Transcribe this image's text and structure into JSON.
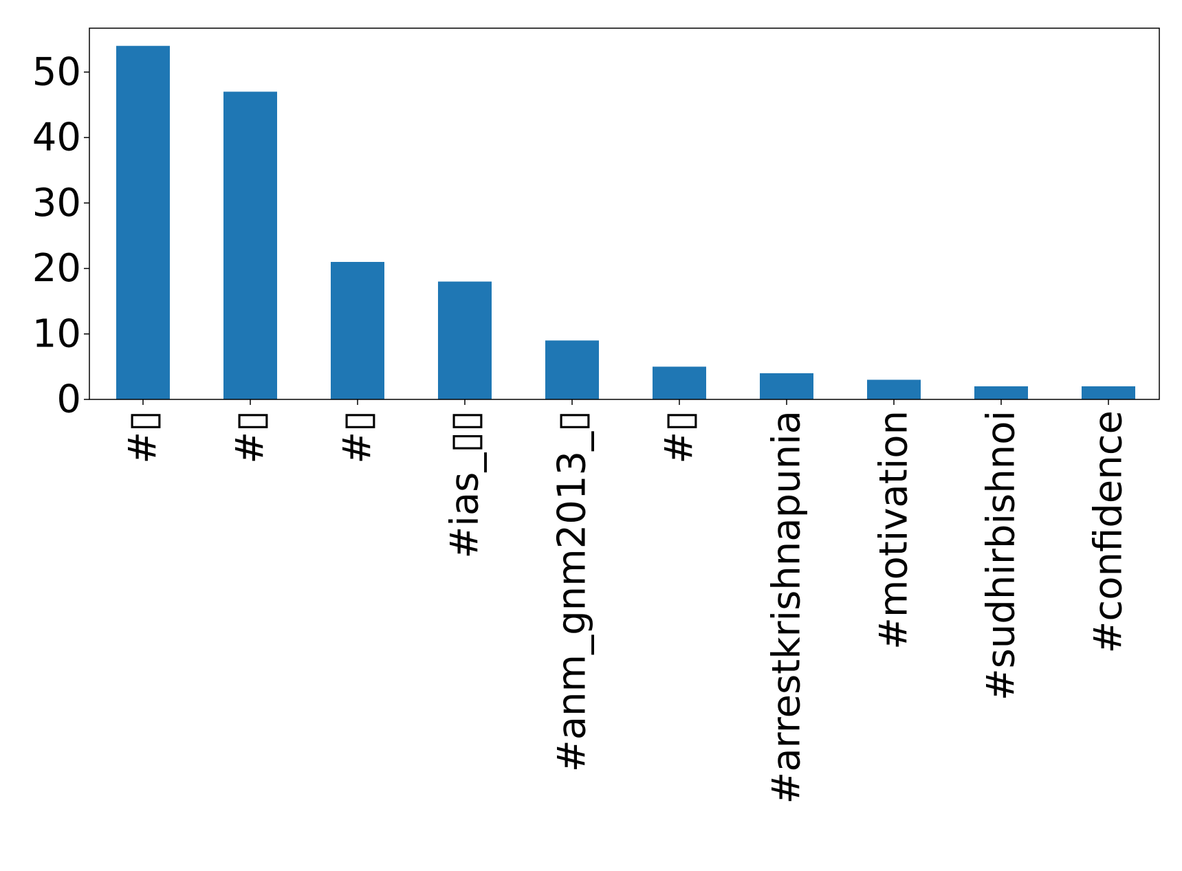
{
  "chart_data": {
    "type": "bar",
    "categories": [
      "#▯",
      "#▯",
      "#▯",
      "#ias_▯▯",
      "#anm_gnm2013_▯",
      "#▯",
      "#arrestkrishnapunia",
      "#motivation",
      "#sudhirbishnoi",
      "#confidence"
    ],
    "values": [
      54,
      47,
      21,
      18,
      9,
      5,
      4,
      3,
      2,
      2
    ],
    "ylim": [
      0,
      56.7
    ],
    "yticks": [
      0,
      10,
      20,
      30,
      40,
      50
    ],
    "bar_color": "#1f77b4",
    "grid": false,
    "legend": "none",
    "title": "",
    "xlabel": "",
    "ylabel": ""
  }
}
